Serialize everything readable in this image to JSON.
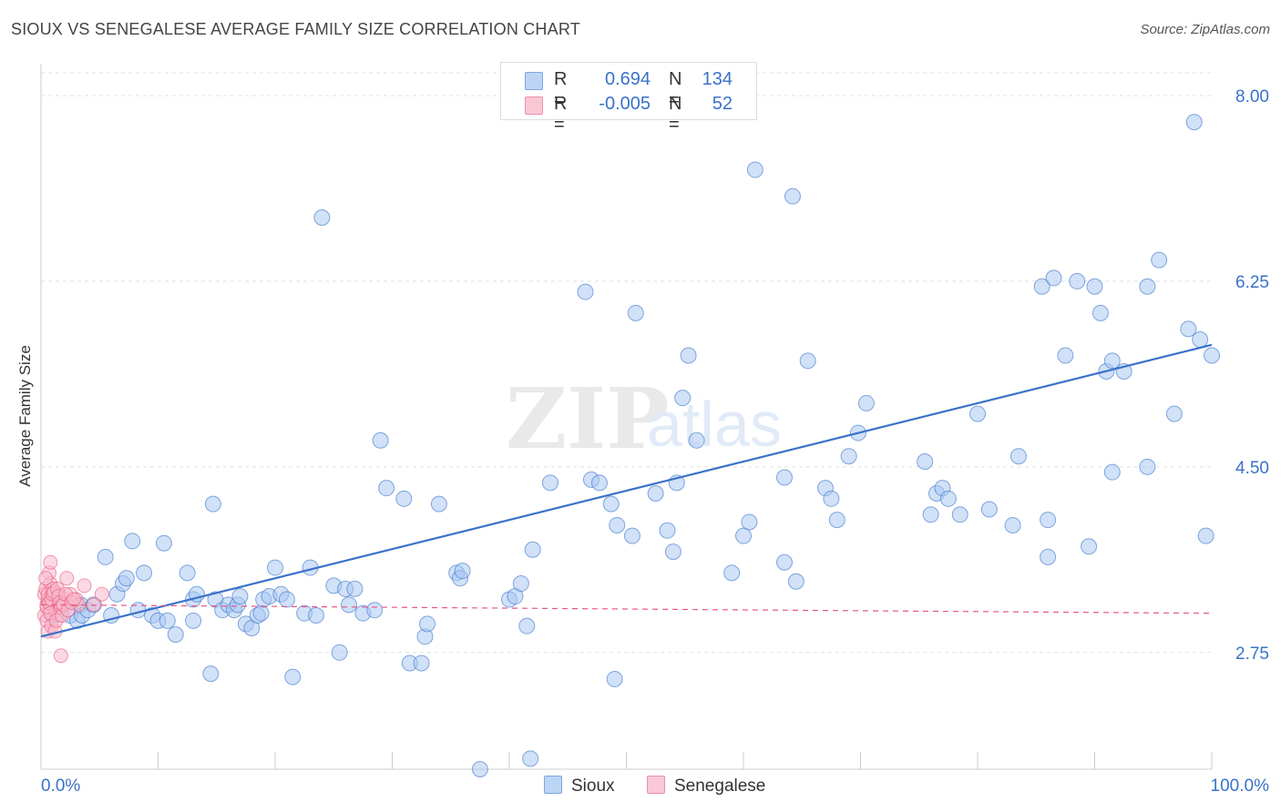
{
  "title": "SIOUX VS SENEGALESE AVERAGE FAMILY SIZE CORRELATION CHART",
  "source": "Source: ZipAtlas.com",
  "watermark": {
    "zip": "ZIP",
    "atlas": "atlas"
  },
  "legend": {
    "series": [
      {
        "r_label": "R =",
        "r_value": "0.694",
        "n_label": "N =",
        "n_value": "134"
      },
      {
        "r_label": "R =",
        "r_value": "-0.005",
        "n_label": "N =",
        "n_value": "52"
      }
    ]
  },
  "bottom_legend": {
    "sioux": "Sioux",
    "senegalese": "Senegalese"
  },
  "colors": {
    "blue": "#3a72c8",
    "blue_fill": "#a9c9f2",
    "pink": "#e8577f",
    "pink_fill": "#f7b9cc",
    "grid": "#dddddd"
  },
  "chart_data": {
    "type": "scatter",
    "title": "SIOUX VS SENEGALESE AVERAGE FAMILY SIZE CORRELATION CHART",
    "xlabel": "",
    "ylabel": "Average Family Size",
    "xlim": [
      0,
      100
    ],
    "ylim": [
      1.65,
      8.3
    ],
    "x_tick_labels": [
      "0.0%",
      "100.0%"
    ],
    "y_ticks": [
      2.75,
      4.5,
      6.25,
      8.0
    ],
    "y_tick_labels": [
      "2.75",
      "4.50",
      "6.25",
      "8.00"
    ],
    "grid": true,
    "series": [
      {
        "name": "Sioux",
        "color": "#3a72c8",
        "trend": {
          "x": [
            0,
            100
          ],
          "y": [
            2.9,
            5.65
          ]
        },
        "points": [
          [
            2.5,
            3.1
          ],
          [
            3.1,
            3.05
          ],
          [
            3.4,
            3.2
          ],
          [
            3.5,
            3.1
          ],
          [
            4.0,
            3.15
          ],
          [
            4.5,
            3.2
          ],
          [
            5.5,
            3.65
          ],
          [
            6.0,
            3.1
          ],
          [
            6.5,
            3.3
          ],
          [
            7.0,
            3.4
          ],
          [
            7.3,
            3.45
          ],
          [
            7.8,
            3.8
          ],
          [
            8.3,
            3.15
          ],
          [
            8.8,
            3.5
          ],
          [
            9.5,
            3.1
          ],
          [
            10.0,
            3.05
          ],
          [
            10.5,
            3.78
          ],
          [
            10.8,
            3.05
          ],
          [
            11.5,
            2.92
          ],
          [
            12.5,
            3.5
          ],
          [
            13.0,
            3.25
          ],
          [
            13.3,
            3.3
          ],
          [
            13.0,
            3.05
          ],
          [
            14.5,
            2.55
          ],
          [
            14.7,
            4.15
          ],
          [
            14.9,
            3.25
          ],
          [
            15.5,
            3.15
          ],
          [
            16.0,
            3.2
          ],
          [
            16.5,
            3.15
          ],
          [
            16.8,
            3.2
          ],
          [
            17.0,
            3.28
          ],
          [
            17.5,
            3.02
          ],
          [
            18.0,
            2.98
          ],
          [
            18.5,
            3.1
          ],
          [
            18.8,
            3.12
          ],
          [
            19.0,
            3.25
          ],
          [
            19.5,
            3.28
          ],
          [
            20.0,
            3.55
          ],
          [
            20.5,
            3.3
          ],
          [
            21.0,
            3.25
          ],
          [
            21.5,
            2.52
          ],
          [
            22.5,
            3.12
          ],
          [
            23.0,
            3.55
          ],
          [
            23.5,
            3.1
          ],
          [
            24.0,
            6.85
          ],
          [
            25.0,
            3.38
          ],
          [
            25.5,
            2.75
          ],
          [
            26.0,
            3.35
          ],
          [
            26.3,
            3.2
          ],
          [
            26.8,
            3.35
          ],
          [
            27.5,
            3.12
          ],
          [
            28.5,
            3.15
          ],
          [
            29.0,
            4.75
          ],
          [
            29.5,
            4.3
          ],
          [
            31.0,
            4.2
          ],
          [
            31.5,
            2.65
          ],
          [
            32.5,
            2.65
          ],
          [
            32.8,
            2.9
          ],
          [
            33.0,
            3.02
          ],
          [
            34.0,
            4.15
          ],
          [
            35.5,
            3.5
          ],
          [
            35.8,
            3.45
          ],
          [
            36.0,
            3.52
          ],
          [
            37.5,
            1.65
          ],
          [
            40.0,
            3.25
          ],
          [
            40.5,
            3.28
          ],
          [
            41.0,
            3.4
          ],
          [
            41.5,
            3.0
          ],
          [
            41.8,
            1.75
          ],
          [
            42.0,
            3.72
          ],
          [
            43.5,
            4.35
          ],
          [
            46.5,
            6.15
          ],
          [
            47.0,
            4.38
          ],
          [
            47.7,
            4.35
          ],
          [
            48.7,
            4.15
          ],
          [
            49.0,
            2.5
          ],
          [
            49.2,
            3.95
          ],
          [
            50.5,
            3.85
          ],
          [
            50.8,
            5.95
          ],
          [
            52.5,
            4.25
          ],
          [
            53.5,
            3.9
          ],
          [
            54.0,
            3.7
          ],
          [
            54.3,
            4.35
          ],
          [
            54.8,
            5.15
          ],
          [
            55.3,
            5.55
          ],
          [
            56.0,
            4.75
          ],
          [
            59.0,
            3.5
          ],
          [
            60.0,
            3.85
          ],
          [
            60.5,
            3.98
          ],
          [
            61.0,
            7.3
          ],
          [
            63.5,
            3.6
          ],
          [
            63.5,
            4.4
          ],
          [
            64.2,
            7.05
          ],
          [
            64.5,
            3.42
          ],
          [
            65.5,
            5.5
          ],
          [
            67.0,
            4.3
          ],
          [
            67.5,
            4.2
          ],
          [
            68.0,
            4.0
          ],
          [
            69.0,
            4.6
          ],
          [
            69.8,
            4.82
          ],
          [
            70.5,
            5.1
          ],
          [
            75.5,
            4.55
          ],
          [
            76.5,
            4.25
          ],
          [
            77.0,
            4.3
          ],
          [
            76.0,
            4.05
          ],
          [
            77.5,
            4.2
          ],
          [
            78.5,
            4.05
          ],
          [
            80.0,
            5.0
          ],
          [
            81.0,
            4.1
          ],
          [
            83.0,
            3.95
          ],
          [
            83.5,
            4.6
          ],
          [
            85.5,
            6.2
          ],
          [
            86.0,
            4.0
          ],
          [
            86.5,
            6.28
          ],
          [
            86.0,
            3.65
          ],
          [
            87.5,
            5.55
          ],
          [
            88.5,
            6.25
          ],
          [
            89.5,
            3.75
          ],
          [
            90.0,
            6.2
          ],
          [
            90.5,
            5.95
          ],
          [
            91.0,
            5.4
          ],
          [
            91.5,
            5.5
          ],
          [
            91.5,
            4.45
          ],
          [
            92.5,
            5.4
          ],
          [
            94.5,
            4.5
          ],
          [
            94.5,
            6.2
          ],
          [
            95.5,
            6.45
          ],
          [
            96.8,
            5.0
          ],
          [
            98.0,
            5.8
          ],
          [
            98.5,
            7.75
          ],
          [
            99.0,
            5.7
          ],
          [
            99.5,
            3.85
          ],
          [
            100.0,
            5.55
          ],
          [
            1.0,
            3.1
          ]
        ]
      },
      {
        "name": "Senegalese",
        "color": "#e8577f",
        "trend": {
          "x": [
            0,
            100
          ],
          "y": [
            3.2,
            3.12
          ]
        },
        "points": [
          [
            0.3,
            3.3
          ],
          [
            0.4,
            3.35
          ],
          [
            0.5,
            3.2
          ],
          [
            0.6,
            3.25
          ],
          [
            0.7,
            3.15
          ],
          [
            0.8,
            3.4
          ],
          [
            0.9,
            3.3
          ],
          [
            1.0,
            3.22
          ],
          [
            1.1,
            3.18
          ],
          [
            1.2,
            3.28
          ],
          [
            0.3,
            3.1
          ],
          [
            0.5,
            3.05
          ],
          [
            0.6,
            2.95
          ],
          [
            0.7,
            3.5
          ],
          [
            0.8,
            3.6
          ],
          [
            0.9,
            3.0
          ],
          [
            1.0,
            3.35
          ],
          [
            1.2,
            3.15
          ],
          [
            1.3,
            3.25
          ],
          [
            1.4,
            3.2
          ],
          [
            1.5,
            3.3
          ],
          [
            1.6,
            3.1
          ],
          [
            1.7,
            2.72
          ],
          [
            1.8,
            3.2
          ],
          [
            2.0,
            3.25
          ],
          [
            2.2,
            3.45
          ],
          [
            2.5,
            3.3
          ],
          [
            3.0,
            3.25
          ],
          [
            3.2,
            3.2
          ],
          [
            3.7,
            3.38
          ],
          [
            4.5,
            3.2
          ],
          [
            5.2,
            3.3
          ],
          [
            0.4,
            3.45
          ],
          [
            0.5,
            3.18
          ],
          [
            0.6,
            3.3
          ],
          [
            0.7,
            3.22
          ],
          [
            0.8,
            3.12
          ],
          [
            0.9,
            3.25
          ],
          [
            1.0,
            3.3
          ],
          [
            1.1,
            3.32
          ],
          [
            1.2,
            2.95
          ],
          [
            1.3,
            3.05
          ],
          [
            1.4,
            3.35
          ],
          [
            1.5,
            3.28
          ],
          [
            1.6,
            3.22
          ],
          [
            1.7,
            3.18
          ],
          [
            1.8,
            3.1
          ],
          [
            1.9,
            3.2
          ],
          [
            2.1,
            3.3
          ],
          [
            2.3,
            3.15
          ],
          [
            2.6,
            3.22
          ],
          [
            2.8,
            3.25
          ]
        ]
      }
    ]
  }
}
